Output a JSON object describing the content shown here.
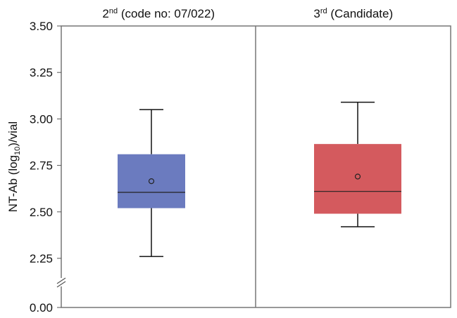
{
  "chart_data": {
    "type": "box",
    "y_label": [
      "NT-Ab (log",
      "10",
      ")/vial"
    ],
    "ylim": [
      0,
      3.5
    ],
    "y_break": [
      0,
      2.25
    ],
    "yticks": [
      {
        "value": 0,
        "label": "0.00"
      },
      {
        "value": 2.25,
        "label": "2.25"
      },
      {
        "value": 2.5,
        "label": "2.50"
      },
      {
        "value": 2.75,
        "label": "2.75"
      },
      {
        "value": 3,
        "label": "3.00"
      },
      {
        "value": 3.25,
        "label": "3.25"
      },
      {
        "value": 3.5,
        "label": "3.50"
      }
    ],
    "panels": [
      {
        "title": [
          "2",
          "nd",
          " (code no: 07/022)"
        ],
        "color": "#6b7bbf",
        "whisker_low": 2.26,
        "q1": 2.52,
        "median": 2.605,
        "q3": 2.81,
        "whisker_high": 3.05,
        "mean": 2.665
      },
      {
        "title": [
          "3",
          "rd",
          " (Candidate)"
        ],
        "color": "#d45a5e",
        "whisker_low": 2.42,
        "q1": 2.49,
        "median": 2.61,
        "q3": 2.865,
        "whisker_high": 3.09,
        "mean": 2.69
      }
    ]
  }
}
